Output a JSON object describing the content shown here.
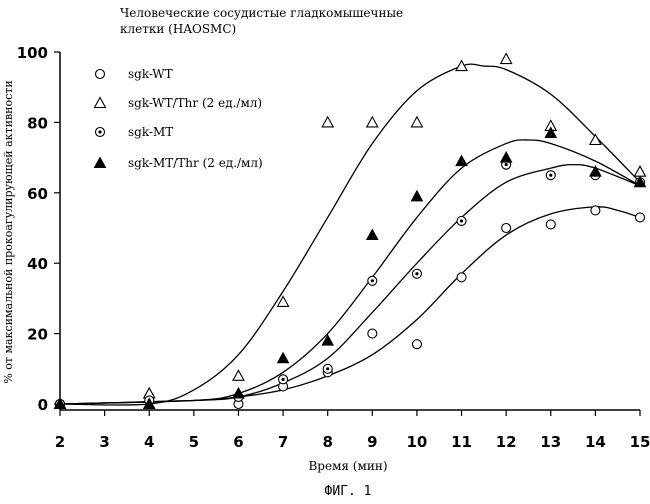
{
  "chart_data": {
    "type": "scatter",
    "title_lines": [
      "Человеческие сосудистые гладкомышечные",
      "клетки (HAOSMC)"
    ],
    "xlabel": "Время (мин)",
    "ylabel": "% от максимальной прокоагулирующей активности",
    "caption": "ФИГ. 1",
    "xlim": [
      2,
      15
    ],
    "ylim": [
      0,
      100
    ],
    "xticks": [
      2,
      3,
      4,
      5,
      6,
      7,
      8,
      9,
      10,
      11,
      12,
      13,
      14,
      15
    ],
    "yticks": [
      0,
      20,
      40,
      60,
      80,
      100
    ],
    "legend_position": "top-left",
    "series": [
      {
        "name": "sgk-WT",
        "marker": "circle-open",
        "points": [
          [
            2,
            0
          ],
          [
            4,
            2
          ],
          [
            6,
            0
          ],
          [
            7,
            5
          ],
          [
            8,
            9
          ],
          [
            9,
            20
          ],
          [
            10,
            17
          ],
          [
            11,
            36
          ],
          [
            12,
            50
          ],
          [
            13,
            51
          ],
          [
            14,
            55
          ],
          [
            15,
            53
          ]
        ],
        "curve": [
          [
            2,
            0
          ],
          [
            5,
            1
          ],
          [
            6,
            2
          ],
          [
            7,
            4
          ],
          [
            8,
            8
          ],
          [
            9,
            14
          ],
          [
            10,
            24
          ],
          [
            11,
            37
          ],
          [
            12,
            48
          ],
          [
            13,
            54
          ],
          [
            14,
            56
          ],
          [
            14.5,
            55
          ],
          [
            15,
            53
          ]
        ]
      },
      {
        "name": "sgk-WT/Thr (2 ед./мл)",
        "marker": "triangle-open",
        "points": [
          [
            2,
            0
          ],
          [
            4,
            3
          ],
          [
            6,
            8
          ],
          [
            7,
            29
          ],
          [
            8,
            80
          ],
          [
            9,
            80
          ],
          [
            10,
            80
          ],
          [
            11,
            96
          ],
          [
            12,
            98
          ],
          [
            13,
            79
          ],
          [
            14,
            75
          ],
          [
            15,
            66
          ]
        ],
        "curve": [
          [
            2,
            0
          ],
          [
            4,
            0
          ],
          [
            5,
            4
          ],
          [
            6,
            14
          ],
          [
            7,
            32
          ],
          [
            8,
            53
          ],
          [
            9,
            74
          ],
          [
            10,
            89
          ],
          [
            11,
            96
          ],
          [
            11.5,
            96
          ],
          [
            12,
            95
          ],
          [
            13,
            88
          ],
          [
            14,
            76
          ],
          [
            15,
            63
          ]
        ]
      },
      {
        "name": "sgk-MT",
        "marker": "circle-dot",
        "points": [
          [
            2,
            0
          ],
          [
            4,
            1
          ],
          [
            6,
            2
          ],
          [
            7,
            7
          ],
          [
            8,
            10
          ],
          [
            9,
            35
          ],
          [
            10,
            37
          ],
          [
            11,
            52
          ],
          [
            12,
            68
          ],
          [
            13,
            65
          ],
          [
            14,
            65
          ],
          [
            15,
            63
          ]
        ],
        "curve": [
          [
            2,
            0
          ],
          [
            5,
            1
          ],
          [
            6,
            2
          ],
          [
            7,
            6
          ],
          [
            8,
            13
          ],
          [
            9,
            26
          ],
          [
            10,
            40
          ],
          [
            11,
            53
          ],
          [
            12,
            63
          ],
          [
            13,
            67
          ],
          [
            13.5,
            68
          ],
          [
            14,
            67
          ],
          [
            15,
            62
          ]
        ]
      },
      {
        "name": "sgk-MT/Thr (2 ед./мл)",
        "marker": "triangle-filled",
        "points": [
          [
            2,
            0
          ],
          [
            4,
            0
          ],
          [
            6,
            3
          ],
          [
            7,
            13
          ],
          [
            8,
            18
          ],
          [
            9,
            48
          ],
          [
            10,
            59
          ],
          [
            11,
            69
          ],
          [
            12,
            70
          ],
          [
            13,
            77
          ],
          [
            14,
            66
          ],
          [
            15,
            63
          ]
        ],
        "curve": [
          [
            2,
            0
          ],
          [
            5,
            1
          ],
          [
            6,
            3
          ],
          [
            7,
            9
          ],
          [
            8,
            20
          ],
          [
            9,
            36
          ],
          [
            10,
            53
          ],
          [
            11,
            67
          ],
          [
            12,
            74
          ],
          [
            12.5,
            75
          ],
          [
            13,
            74
          ],
          [
            14,
            69
          ],
          [
            15,
            62
          ]
        ]
      }
    ]
  }
}
